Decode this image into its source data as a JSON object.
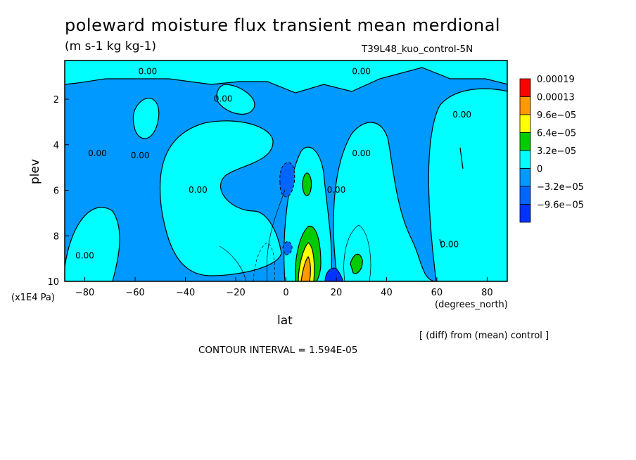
{
  "chart_data": {
    "type": "heatmap",
    "title": "poleward moisture flux transient mean merdional",
    "subtitle": "(m s-1 kg kg-1)",
    "run_label": "T39L48_kuo_control-5N",
    "xlabel": "lat",
    "ylabel": "plev",
    "x_unit_label": "(degrees_north)",
    "y_unit_label": "(x1E4 Pa)",
    "note": "[ (diff) from (mean) control ]",
    "contour_interval": "CONTOUR INTERVAL = 1.594E-05",
    "xlim": [
      -88,
      88
    ],
    "ylim": [
      10,
      0.3
    ],
    "x_ticks": [
      -80,
      -60,
      -40,
      -20,
      0,
      20,
      40,
      60,
      80
    ],
    "y_ticks": [
      2,
      4,
      6,
      8,
      10
    ],
    "colorbar": {
      "labels": [
        "0.00019",
        "0.00013",
        "9.6e-05",
        "6.4e-05",
        "3.2e-05",
        "0",
        "-3.2e-05",
        "-9.6e-05"
      ],
      "colors": [
        "#ff0000",
        "#ff9900",
        "#ffff00",
        "#00cc00",
        "#00ffff",
        "#0099ff",
        "#0066ff",
        "#0033ff"
      ]
    },
    "contour_labels": [
      {
        "text": "0.00",
        "lat": -55,
        "plev": 0.9
      },
      {
        "text": "0.00",
        "lat": -25,
        "plev": 2.1
      },
      {
        "text": "0.00",
        "lat": 30,
        "plev": 0.9
      },
      {
        "text": "0.00",
        "lat": -75,
        "plev": 4.5
      },
      {
        "text": "0.00",
        "lat": -58,
        "plev": 4.6
      },
      {
        "text": "0.00",
        "lat": -35,
        "plev": 6.1
      },
      {
        "text": "0.00",
        "lat": 20,
        "plev": 6.1
      },
      {
        "text": "0.00",
        "lat": 30,
        "plev": 4.5
      },
      {
        "text": "0.00",
        "lat": 70,
        "plev": 2.8
      },
      {
        "text": "0.00",
        "lat": 65,
        "plev": 8.5
      },
      {
        "text": "0.00",
        "lat": -80,
        "plev": 9.0
      }
    ]
  }
}
